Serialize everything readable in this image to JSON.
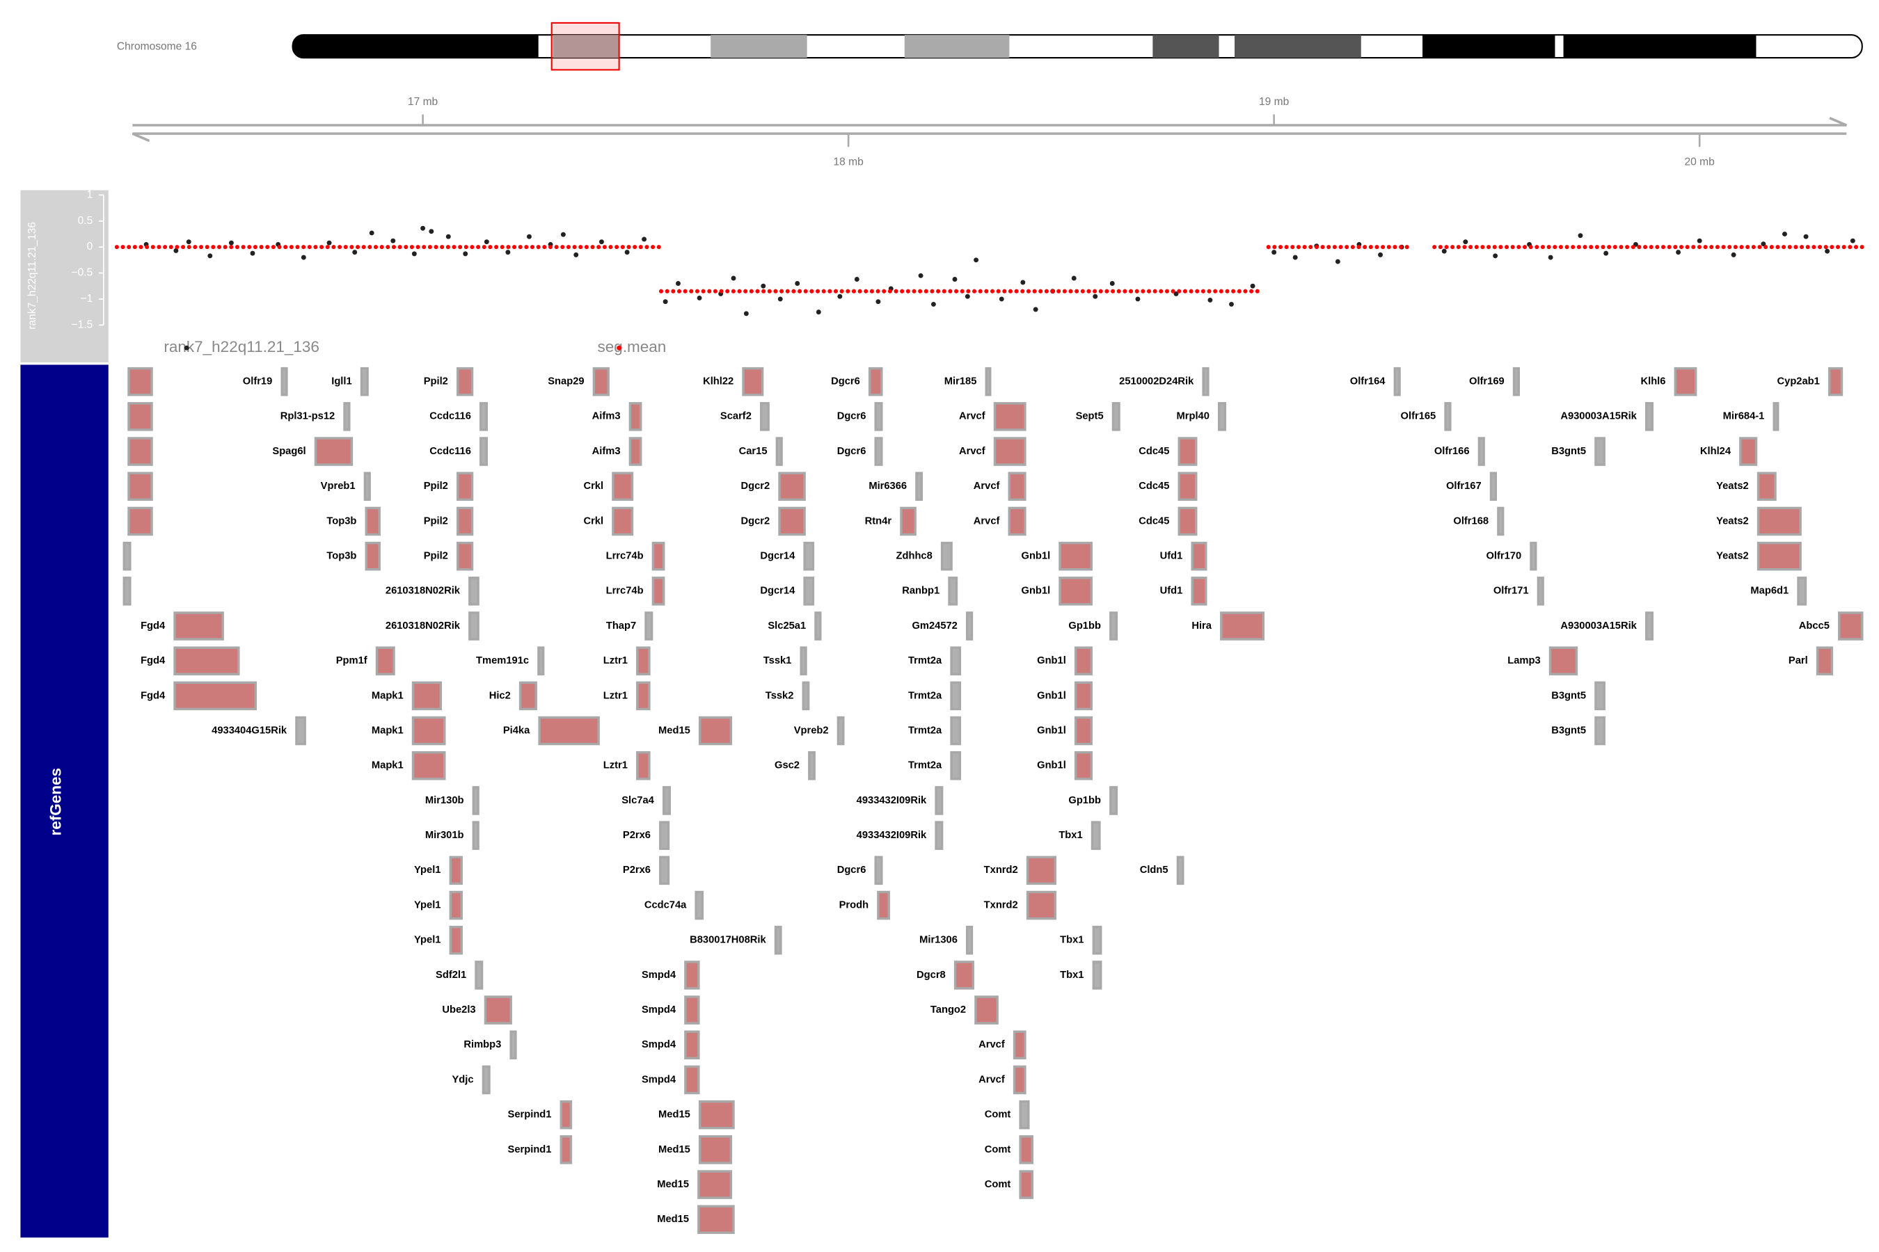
{
  "chromosome": "Chromosome 16",
  "chart_data": {
    "type": "scatter",
    "xlim": [
      16.281,
      20.382
    ],
    "xticks": [
      {
        "value": 17,
        "label": "17 mb"
      },
      {
        "value": 18,
        "label": "18 mb"
      },
      {
        "value": 19,
        "label": "19 mb"
      },
      {
        "value": 20,
        "label": "20 mb"
      }
    ],
    "ylim": [
      -1.5,
      1
    ],
    "yticks": [
      1,
      0.5,
      0,
      {
        "value": -0.5,
        "label": "−0.5"
      },
      {
        "value": -1,
        "label": "−1"
      },
      {
        "value": -1.5,
        "label": "−1.5"
      }
    ],
    "track_label": "rank7_h22q11.21_136",
    "series": [
      {
        "name": "rank7_h22q11.21_136",
        "color": "#222222",
        "x": [
          16.35,
          16.42,
          16.45,
          16.5,
          16.55,
          16.6,
          16.66,
          16.72,
          16.78,
          16.84,
          16.88,
          16.93,
          16.98,
          17.0,
          17.02,
          17.06,
          17.1,
          17.15,
          17.2,
          17.25,
          17.3,
          17.33,
          17.36,
          17.42,
          17.48,
          17.52,
          17.57,
          17.6,
          17.65,
          17.7,
          17.73,
          17.76,
          17.8,
          17.84,
          17.88,
          17.93,
          17.98,
          18.02,
          18.07,
          18.1,
          18.17,
          18.2,
          18.25,
          18.28,
          18.3,
          18.36,
          18.41,
          18.44,
          18.48,
          18.53,
          18.58,
          18.62,
          18.68,
          18.77,
          18.85,
          18.9,
          18.95,
          19.0,
          19.05,
          19.1,
          19.15,
          19.2,
          19.25,
          19.3,
          19.4,
          19.45,
          19.52,
          19.6,
          19.65,
          19.72,
          19.78,
          19.85,
          19.95,
          20.0,
          20.08,
          20.15,
          20.2,
          20.25,
          20.3,
          20.36
        ],
        "values": [
          0.05,
          -0.07,
          0.1,
          -0.17,
          0.08,
          -0.12,
          0.05,
          -0.2,
          0.08,
          -0.1,
          0.27,
          0.12,
          -0.13,
          0.36,
          0.3,
          0.2,
          -0.13,
          0.1,
          -0.1,
          0.2,
          0.05,
          0.24,
          -0.15,
          0.1,
          -0.1,
          0.15,
          -1.05,
          -0.7,
          -0.98,
          -0.9,
          -0.6,
          -1.28,
          -0.75,
          -1.0,
          -0.7,
          -1.25,
          -0.95,
          -0.62,
          -1.05,
          -0.8,
          -0.55,
          -1.1,
          -0.62,
          -0.95,
          -0.25,
          -1.0,
          -0.68,
          -1.2,
          -0.85,
          -0.6,
          -0.95,
          -0.7,
          -1.0,
          -0.9,
          -1.02,
          -1.1,
          -0.75,
          -0.1,
          -0.2,
          0.02,
          -0.28,
          0.05,
          -0.15,
          0.0,
          -0.08,
          0.1,
          -0.17,
          0.05,
          -0.2,
          0.22,
          -0.12,
          0.05,
          -0.1,
          0.12,
          -0.15,
          0.06,
          0.25,
          0.2,
          -0.08,
          0.12
        ]
      }
    ],
    "segments": {
      "name": "seg.mean",
      "color": "#ff0000",
      "starts": [
        16.281,
        17.56,
        18.987,
        19.377
      ],
      "ends": [
        17.56,
        18.975,
        19.323,
        20.382
      ],
      "values": [
        0,
        -0.85,
        0,
        0
      ]
    }
  },
  "gene_track": {
    "label": "refGenes",
    "rows": [
      [
        {
          "name": null,
          "start": 16.309,
          "end": 16.363
        },
        {
          "name": "Olfr19",
          "start": 16.669,
          "end": 16.68
        },
        {
          "name": "Igll1",
          "start": 16.856,
          "end": 16.87
        },
        {
          "name": "Ppil2",
          "start": 17.082,
          "end": 17.116
        },
        {
          "name": "Snap29",
          "start": 17.402,
          "end": 17.436
        },
        {
          "name": "Klhl22",
          "start": 17.753,
          "end": 17.798
        },
        {
          "name": "Dgcr6",
          "start": 18.05,
          "end": 18.078
        },
        {
          "name": "Mir185",
          "start": 18.324,
          "end": 18.333
        },
        {
          "name": "2510002D24Rik",
          "start": 18.834,
          "end": 18.845
        },
        {
          "name": "Olfr164",
          "start": 19.284,
          "end": 19.295
        },
        {
          "name": "Olfr169",
          "start": 19.564,
          "end": 19.575
        },
        {
          "name": "Klhl6",
          "start": 19.943,
          "end": 19.991
        },
        {
          "name": "Cyp2ab1",
          "start": 20.305,
          "end": 20.334
        }
      ],
      [
        {
          "name": null,
          "start": 16.309,
          "end": 16.363
        },
        {
          "name": "Rpl31-ps12",
          "start": 16.816,
          "end": 16.827
        },
        {
          "name": "Ccdc116",
          "start": 17.136,
          "end": 17.15
        },
        {
          "name": "Aifm3",
          "start": 17.487,
          "end": 17.512
        },
        {
          "name": "Scarf2",
          "start": 17.795,
          "end": 17.812
        },
        {
          "name": "Dgcr6",
          "start": 18.064,
          "end": 18.078
        },
        {
          "name": "Arvcf",
          "start": 18.344,
          "end": 18.415
        },
        {
          "name": "Sept5",
          "start": 18.622,
          "end": 18.636
        },
        {
          "name": "Mrpl40",
          "start": 18.871,
          "end": 18.885
        },
        {
          "name": "Olfr165",
          "start": 19.403,
          "end": 19.414
        },
        {
          "name": "A930003A15Rik",
          "start": 19.875,
          "end": 19.889
        },
        {
          "name": "Mir684-1",
          "start": 20.175,
          "end": 20.184
        }
      ],
      [
        {
          "name": null,
          "start": 16.309,
          "end": 16.363
        },
        {
          "name": "Spag6l",
          "start": 16.748,
          "end": 16.833
        },
        {
          "name": "Ccdc116",
          "start": 17.136,
          "end": 17.15
        },
        {
          "name": "Aifm3",
          "start": 17.487,
          "end": 17.512
        },
        {
          "name": "Car15",
          "start": 17.832,
          "end": 17.843
        },
        {
          "name": "Dgcr6",
          "start": 18.064,
          "end": 18.078
        },
        {
          "name": "Arvcf",
          "start": 18.344,
          "end": 18.415
        },
        {
          "name": "Cdc45",
          "start": 18.777,
          "end": 18.817
        },
        {
          "name": "Olfr166",
          "start": 19.482,
          "end": 19.493
        },
        {
          "name": "B3gnt5",
          "start": 19.756,
          "end": 19.776
        },
        {
          "name": "Klhl24",
          "start": 20.096,
          "end": 20.133
        }
      ],
      [
        {
          "name": null,
          "start": 16.309,
          "end": 16.363
        },
        {
          "name": "Vpreb1",
          "start": 16.864,
          "end": 16.875
        },
        {
          "name": "Ppil2",
          "start": 17.082,
          "end": 17.116
        },
        {
          "name": "Crkl",
          "start": 17.447,
          "end": 17.492
        },
        {
          "name": "Dgcr2",
          "start": 17.838,
          "end": 17.897
        },
        {
          "name": "Mir6366",
          "start": 18.16,
          "end": 18.172
        },
        {
          "name": "Arvcf",
          "start": 18.378,
          "end": 18.415
        },
        {
          "name": "Cdc45",
          "start": 18.777,
          "end": 18.817
        },
        {
          "name": "Olfr167",
          "start": 19.51,
          "end": 19.521
        },
        {
          "name": "Yeats2",
          "start": 20.138,
          "end": 20.178
        }
      ],
      [
        {
          "name": null,
          "start": 16.309,
          "end": 16.363
        },
        {
          "name": "Top3b",
          "start": 16.867,
          "end": 16.898
        },
        {
          "name": "Ppil2",
          "start": 17.082,
          "end": 17.116
        },
        {
          "name": "Crkl",
          "start": 17.447,
          "end": 17.492
        },
        {
          "name": "Dgcr2",
          "start": 17.838,
          "end": 17.897
        },
        {
          "name": "Rtn4r",
          "start": 18.124,
          "end": 18.157
        },
        {
          "name": "Arvcf",
          "start": 18.378,
          "end": 18.415
        },
        {
          "name": "Cdc45",
          "start": 18.777,
          "end": 18.817
        },
        {
          "name": "Olfr168",
          "start": 19.527,
          "end": 19.538
        },
        {
          "name": "Yeats2",
          "start": 20.138,
          "end": 20.237
        }
      ],
      [
        {
          "name": null,
          "start": 16.298,
          "end": 16.312
        },
        {
          "name": "Top3b",
          "start": 16.867,
          "end": 16.898
        },
        {
          "name": "Ppil2",
          "start": 17.082,
          "end": 17.116
        },
        {
          "name": "Lrrc74b",
          "start": 17.541,
          "end": 17.566
        },
        {
          "name": "Dgcr14",
          "start": 17.897,
          "end": 17.917
        },
        {
          "name": "Zdhhc8",
          "start": 18.22,
          "end": 18.242
        },
        {
          "name": "Gnb1l",
          "start": 18.497,
          "end": 18.571
        },
        {
          "name": "Ufd1",
          "start": 18.808,
          "end": 18.84
        },
        {
          "name": "Olfr170",
          "start": 19.604,
          "end": 19.615
        },
        {
          "name": "Yeats2",
          "start": 20.138,
          "end": 20.237
        }
      ],
      [
        {
          "name": null,
          "start": 16.298,
          "end": 16.312
        },
        {
          "name": "2610318N02Rik",
          "start": 17.11,
          "end": 17.13
        },
        {
          "name": "Lrrc74b",
          "start": 17.541,
          "end": 17.566
        },
        {
          "name": "Dgcr14",
          "start": 17.897,
          "end": 17.917
        },
        {
          "name": "Ranbp1",
          "start": 18.237,
          "end": 18.254
        },
        {
          "name": "Gnb1l",
          "start": 18.497,
          "end": 18.571
        },
        {
          "name": "Ufd1",
          "start": 18.808,
          "end": 18.84
        },
        {
          "name": "Olfr171",
          "start": 19.621,
          "end": 19.632
        },
        {
          "name": "Map6d1",
          "start": 20.232,
          "end": 20.249
        }
      ],
      [
        {
          "name": "Fgd4",
          "start": 16.417,
          "end": 16.53
        },
        {
          "name": "2610318N02Rik",
          "start": 17.11,
          "end": 17.13
        },
        {
          "name": "Thap7",
          "start": 17.524,
          "end": 17.538
        },
        {
          "name": "Slc25a1",
          "start": 17.923,
          "end": 17.934
        },
        {
          "name": "Gm24572",
          "start": 18.279,
          "end": 18.29
        },
        {
          "name": "Gp1bb",
          "start": 18.616,
          "end": 18.63
        },
        {
          "name": "Hira",
          "start": 18.876,
          "end": 18.975
        },
        {
          "name": "A930003A15Rik",
          "start": 19.875,
          "end": 19.889
        },
        {
          "name": "Abcc5",
          "start": 20.328,
          "end": 20.382
        }
      ],
      [
        {
          "name": "Fgd4",
          "start": 16.417,
          "end": 16.567
        },
        {
          "name": "Ppm1f",
          "start": 16.892,
          "end": 16.932
        },
        {
          "name": "Tmem191c",
          "start": 17.272,
          "end": 17.283
        },
        {
          "name": "Lztr1",
          "start": 17.504,
          "end": 17.532
        },
        {
          "name": "Tssk1",
          "start": 17.889,
          "end": 17.9
        },
        {
          "name": "Trmt2a",
          "start": 18.242,
          "end": 18.262
        },
        {
          "name": "Gnb1l",
          "start": 18.534,
          "end": 18.571
        },
        {
          "name": "Lamp3",
          "start": 19.649,
          "end": 19.711
        },
        {
          "name": "Parl",
          "start": 20.277,
          "end": 20.311
        }
      ],
      [
        {
          "name": "Fgd4",
          "start": 16.417,
          "end": 16.607
        },
        {
          "name": "Mapk1",
          "start": 16.977,
          "end": 17.042
        },
        {
          "name": "Hic2",
          "start": 17.229,
          "end": 17.266
        },
        {
          "name": "Lztr1",
          "start": 17.504,
          "end": 17.532
        },
        {
          "name": "Tssk2",
          "start": 17.894,
          "end": 17.906
        },
        {
          "name": "Trmt2a",
          "start": 18.242,
          "end": 18.262
        },
        {
          "name": "Gnb1l",
          "start": 18.534,
          "end": 18.571
        },
        {
          "name": "B3gnt5",
          "start": 19.756,
          "end": 19.776
        }
      ],
      [
        {
          "name": "4933404G15Rik",
          "start": 16.703,
          "end": 16.723
        },
        {
          "name": "Mapk1",
          "start": 16.977,
          "end": 17.051
        },
        {
          "name": "Pi4ka",
          "start": 17.274,
          "end": 17.413
        },
        {
          "name": "Med15",
          "start": 17.651,
          "end": 17.724
        },
        {
          "name": "Vpreb2",
          "start": 17.976,
          "end": 17.988
        },
        {
          "name": "Trmt2a",
          "start": 18.242,
          "end": 18.262
        },
        {
          "name": "Gnb1l",
          "start": 18.534,
          "end": 18.571
        },
        {
          "name": "B3gnt5",
          "start": 19.756,
          "end": 19.776
        }
      ],
      [
        {
          "name": "Mapk1",
          "start": 16.977,
          "end": 17.051
        },
        {
          "name": "Lztr1",
          "start": 17.504,
          "end": 17.532
        },
        {
          "name": "Gsc2",
          "start": 17.908,
          "end": 17.92
        },
        {
          "name": "Trmt2a",
          "start": 18.242,
          "end": 18.262
        },
        {
          "name": "Gnb1l",
          "start": 18.534,
          "end": 18.571
        }
      ],
      [
        {
          "name": "Mir130b",
          "start": 17.119,
          "end": 17.13
        },
        {
          "name": "Slc7a4",
          "start": 17.566,
          "end": 17.58
        },
        {
          "name": "4933432I09Rik",
          "start": 18.206,
          "end": 18.22
        },
        {
          "name": "Gp1bb",
          "start": 18.616,
          "end": 18.63
        }
      ],
      [
        {
          "name": "Mir301b",
          "start": 17.119,
          "end": 17.13
        },
        {
          "name": "P2rx6",
          "start": 17.558,
          "end": 17.577
        },
        {
          "name": "4933432I09Rik",
          "start": 18.206,
          "end": 18.22
        },
        {
          "name": "Tbx1",
          "start": 18.573,
          "end": 18.59
        }
      ],
      [
        {
          "name": "Ypel1",
          "start": 17.065,
          "end": 17.091
        },
        {
          "name": "P2rx6",
          "start": 17.558,
          "end": 17.577
        },
        {
          "name": "Dgcr6",
          "start": 18.064,
          "end": 18.078
        },
        {
          "name": "Txnrd2",
          "start": 18.421,
          "end": 18.486
        },
        {
          "name": "Cldn5",
          "start": 18.774,
          "end": 18.786
        }
      ],
      [
        {
          "name": "Ypel1",
          "start": 17.065,
          "end": 17.091
        },
        {
          "name": "Ccdc74a",
          "start": 17.642,
          "end": 17.657
        },
        {
          "name": "Prodh",
          "start": 18.07,
          "end": 18.095
        },
        {
          "name": "Txnrd2",
          "start": 18.421,
          "end": 18.486
        }
      ],
      [
        {
          "name": "Ypel1",
          "start": 17.065,
          "end": 17.091
        },
        {
          "name": "B830017H08Rik",
          "start": 17.829,
          "end": 17.841
        },
        {
          "name": "Mir1306",
          "start": 18.279,
          "end": 18.29
        },
        {
          "name": "Tbx1",
          "start": 18.576,
          "end": 18.593
        }
      ],
      [
        {
          "name": "Sdf2l1",
          "start": 17.125,
          "end": 17.139
        },
        {
          "name": "Smpd4",
          "start": 17.617,
          "end": 17.648
        },
        {
          "name": "Dgcr8",
          "start": 18.251,
          "end": 18.293
        },
        {
          "name": "Tbx1",
          "start": 18.576,
          "end": 18.593
        }
      ],
      [
        {
          "name": "Ube2l3",
          "start": 17.147,
          "end": 17.207
        },
        {
          "name": "Smpd4",
          "start": 17.617,
          "end": 17.648
        },
        {
          "name": "Tango2",
          "start": 18.299,
          "end": 18.35
        }
      ],
      [
        {
          "name": "Rimbp3",
          "start": 17.207,
          "end": 17.218
        },
        {
          "name": "Smpd4",
          "start": 17.617,
          "end": 17.648
        },
        {
          "name": "Arvcf",
          "start": 18.39,
          "end": 18.415
        }
      ],
      [
        {
          "name": "Ydjc",
          "start": 17.142,
          "end": 17.156
        },
        {
          "name": "Smpd4",
          "start": 17.617,
          "end": 17.648
        },
        {
          "name": "Arvcf",
          "start": 18.39,
          "end": 18.415
        }
      ],
      [
        {
          "name": "Serpind1",
          "start": 17.325,
          "end": 17.348
        },
        {
          "name": "Med15",
          "start": 17.651,
          "end": 17.73
        },
        {
          "name": "Comt",
          "start": 18.404,
          "end": 18.423
        }
      ],
      [
        {
          "name": "Serpind1",
          "start": 17.325,
          "end": 17.348
        },
        {
          "name": "Med15",
          "start": 17.651,
          "end": 17.724
        },
        {
          "name": "Comt",
          "start": 18.404,
          "end": 18.432
        }
      ],
      [
        {
          "name": "Med15",
          "start": 17.648,
          "end": 17.724
        },
        {
          "name": "Comt",
          "start": 18.404,
          "end": 18.432
        }
      ],
      [
        {
          "name": "Med15",
          "start": 17.648,
          "end": 17.73
        }
      ]
    ]
  }
}
